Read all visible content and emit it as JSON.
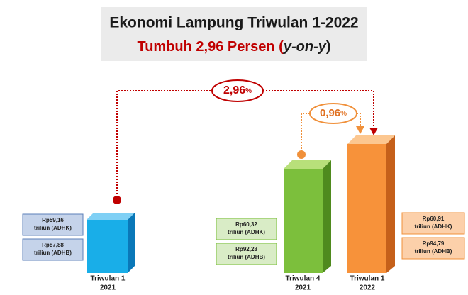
{
  "header": {
    "title": "Ekonomi Lampung Triwulan 1-2022",
    "subtitle": "Tumbuh 2,96 Persen (",
    "subtitle_italic": "y-on-y",
    "subtitle_close": ")"
  },
  "growth": [
    {
      "value": "2,96",
      "unit": "%"
    },
    {
      "value": "0,96",
      "unit": "%"
    }
  ],
  "bars": [
    {
      "label": [
        "Triwulan 1",
        "2021"
      ],
      "boxes": [
        [
          "Rp59,16",
          "triliun (ADHK)"
        ],
        [
          "Rp87,88",
          "triliun (ADHB)"
        ]
      ]
    },
    {
      "label": [
        "Triwulan 4",
        "2021"
      ],
      "boxes": [
        [
          "Rp60,32",
          "triliun (ADHK)"
        ],
        [
          "Rp92,28",
          "triliun (ADHB)"
        ]
      ]
    },
    {
      "label": [
        "Triwulan 1",
        "2022"
      ],
      "boxes": [
        [
          "Rp60,91",
          "triliun (ADHK)"
        ],
        [
          "Rp94,79",
          "triliun (ADHB)"
        ]
      ]
    }
  ]
}
